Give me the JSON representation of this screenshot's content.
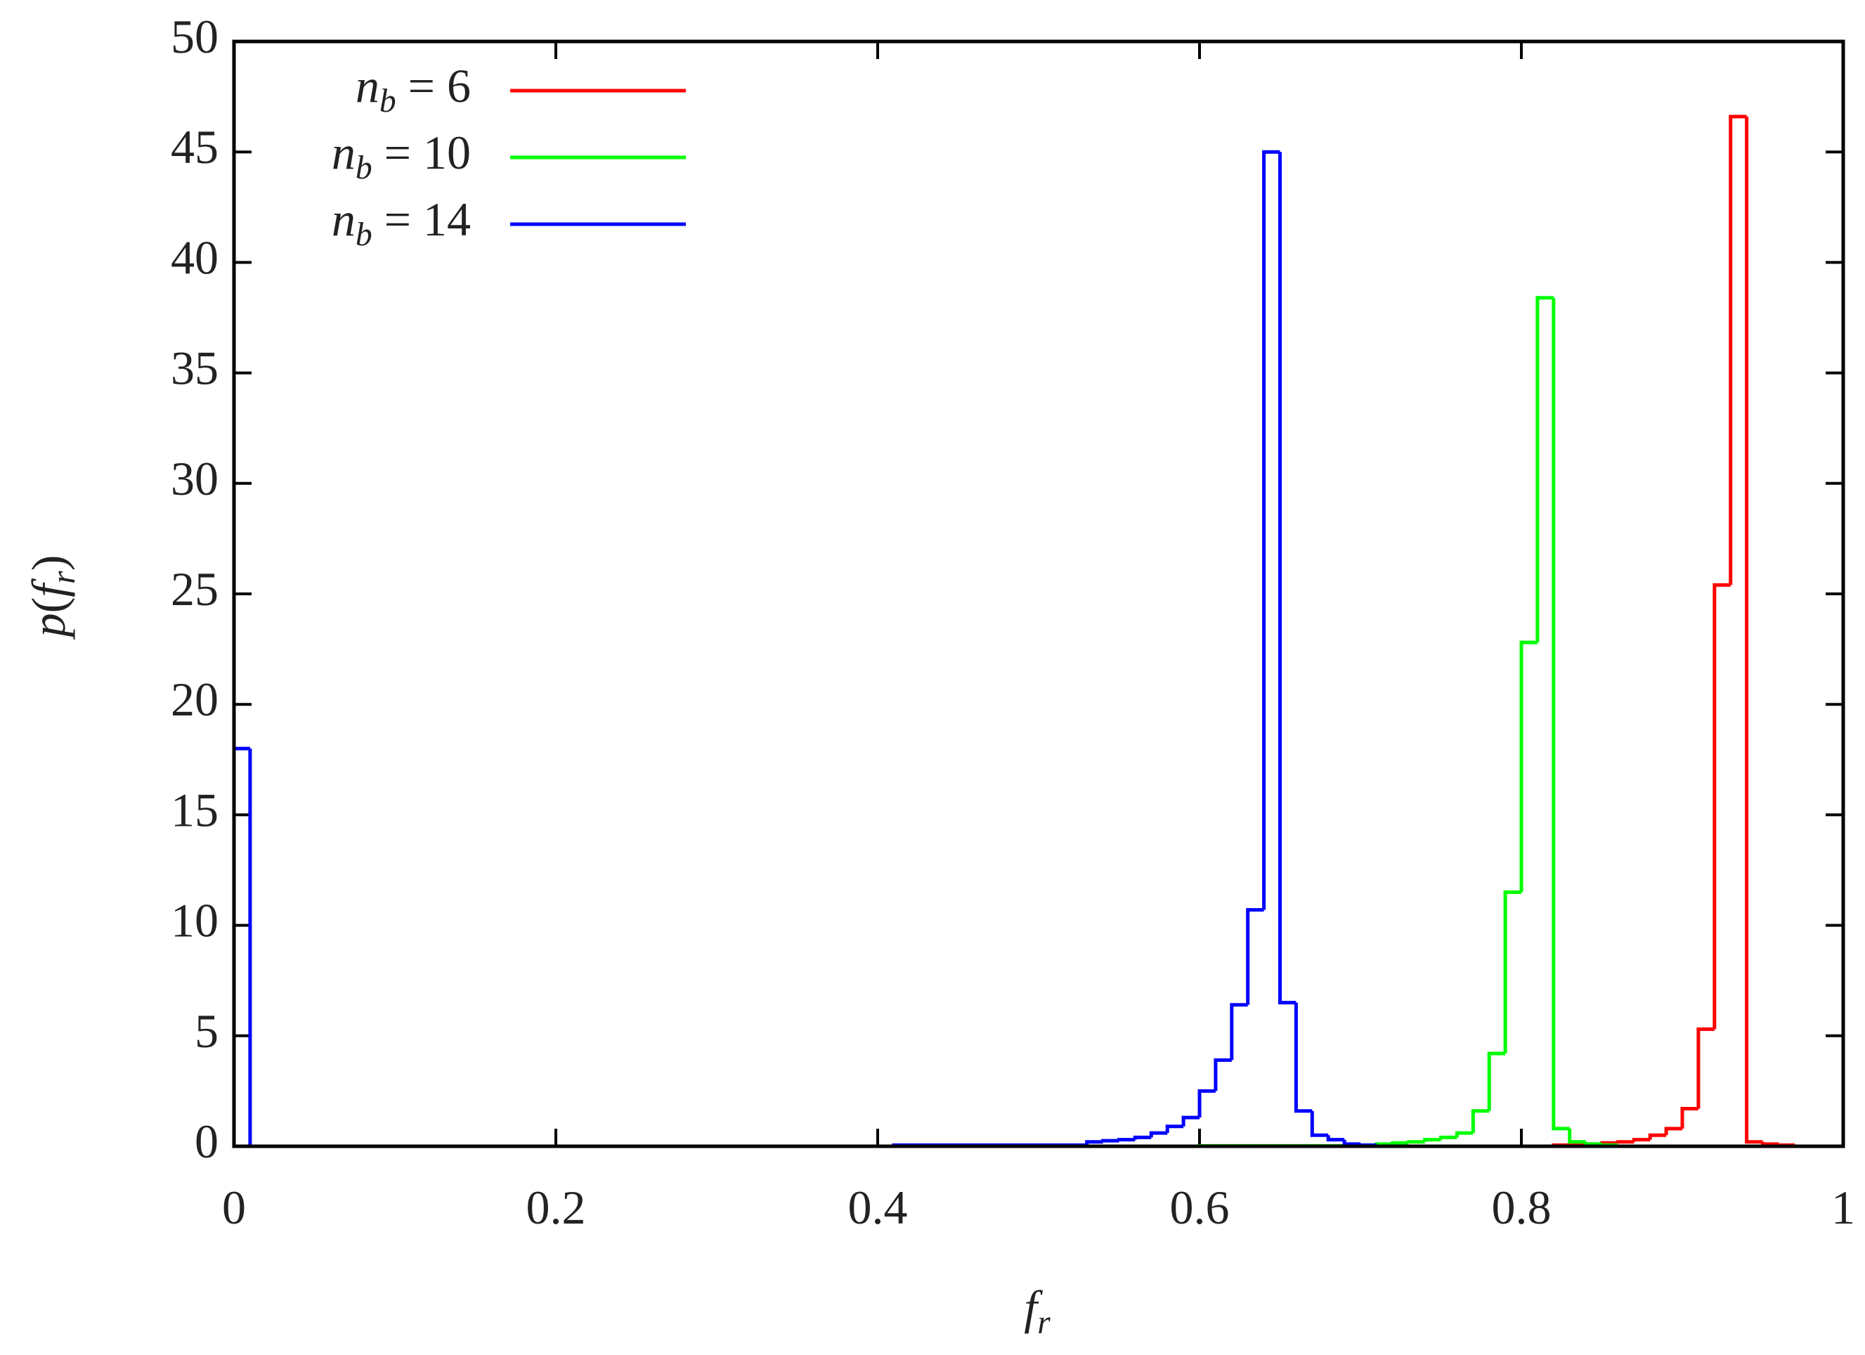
{
  "chart_data": {
    "type": "histogram",
    "x_label": "f_r",
    "y_label": "p(f_r)",
    "bins": [
      0,
      0.01,
      0.02,
      0.03,
      0.04,
      0.05,
      0.06,
      0.07,
      0.08,
      0.09,
      0.1,
      0.11,
      0.12,
      0.13,
      0.14,
      0.15,
      0.16,
      0.17,
      0.18,
      0.19,
      0.2,
      0.21,
      0.22,
      0.23,
      0.24,
      0.25,
      0.26,
      0.27,
      0.28,
      0.29,
      0.3,
      0.31,
      0.32,
      0.33,
      0.34,
      0.35,
      0.36,
      0.37,
      0.38,
      0.39,
      0.4,
      0.41,
      0.42,
      0.43,
      0.44,
      0.45,
      0.46,
      0.47,
      0.48,
      0.49,
      0.5,
      0.51,
      0.52,
      0.53,
      0.54,
      0.55,
      0.56,
      0.57,
      0.58,
      0.59,
      0.6,
      0.61,
      0.62,
      0.63,
      0.64,
      0.65,
      0.66,
      0.67,
      0.68,
      0.69,
      0.7,
      0.71,
      0.72,
      0.73,
      0.74,
      0.75,
      0.76,
      0.77,
      0.78,
      0.79,
      0.8,
      0.81,
      0.82,
      0.83,
      0.84,
      0.85,
      0.86,
      0.87,
      0.88,
      0.89,
      0.9,
      0.91,
      0.92,
      0.93,
      0.94,
      0.95,
      0.96,
      0.97,
      0.98,
      0.99,
      1
    ],
    "series": [
      {
        "name": "n_b = 6",
        "color": "#ff0000",
        "values": [
          0,
          0,
          0,
          0,
          0,
          0,
          0,
          0,
          0,
          0,
          0,
          0,
          0,
          0,
          0,
          0,
          0,
          0,
          0,
          0,
          0,
          0,
          0,
          0,
          0,
          0,
          0,
          0,
          0,
          0,
          0,
          0,
          0,
          0,
          0,
          0,
          0,
          0,
          0,
          0,
          0,
          0,
          0,
          0,
          0,
          0,
          0,
          0,
          0,
          0,
          0,
          0,
          0,
          0,
          0,
          0,
          0,
          0,
          0,
          0,
          0,
          0,
          0,
          0,
          0,
          0,
          0,
          0,
          0,
          0,
          0,
          0,
          0,
          0,
          0,
          0,
          0,
          0,
          0,
          0,
          0,
          0,
          0.05,
          0.05,
          0.1,
          0.15,
          0.2,
          0.3,
          0.5,
          0.8,
          1.7,
          5.3,
          25.4,
          46.6,
          0.2,
          0.1,
          0.05,
          0,
          0,
          0
        ]
      },
      {
        "name": "n_b = 10",
        "color": "#00ff00",
        "values": [
          0,
          0,
          0,
          0,
          0,
          0,
          0,
          0,
          0,
          0,
          0,
          0,
          0,
          0,
          0,
          0,
          0,
          0,
          0,
          0,
          0,
          0,
          0,
          0,
          0,
          0,
          0,
          0,
          0,
          0,
          0,
          0,
          0,
          0,
          0,
          0,
          0,
          0,
          0,
          0,
          0,
          0,
          0,
          0,
          0,
          0,
          0,
          0,
          0,
          0,
          0,
          0,
          0,
          0,
          0,
          0,
          0,
          0,
          0,
          0,
          0.02,
          0.02,
          0.02,
          0.02,
          0.02,
          0.02,
          0.02,
          0.02,
          0.02,
          0.02,
          0.05,
          0.1,
          0.15,
          0.2,
          0.3,
          0.4,
          0.6,
          1.6,
          4.2,
          11.5,
          22.8,
          38.4,
          0.8,
          0.2,
          0.1,
          0.05,
          0,
          0,
          0,
          0,
          0,
          0,
          0,
          0,
          0,
          0,
          0,
          0,
          0,
          0
        ]
      },
      {
        "name": "n_b = 14",
        "color": "#0000ff",
        "values": [
          18,
          0,
          0,
          0,
          0,
          0,
          0,
          0,
          0,
          0,
          0,
          0,
          0,
          0,
          0,
          0,
          0,
          0,
          0,
          0,
          0,
          0,
          0,
          0,
          0,
          0,
          0,
          0,
          0,
          0,
          0,
          0,
          0,
          0,
          0,
          0,
          0,
          0,
          0,
          0,
          0,
          0.05,
          0.05,
          0.05,
          0.05,
          0.05,
          0.05,
          0.05,
          0.05,
          0.05,
          0.05,
          0.05,
          0.05,
          0.2,
          0.25,
          0.3,
          0.4,
          0.6,
          0.9,
          1.3,
          2.5,
          3.9,
          6.4,
          10.7,
          45,
          6.5,
          1.6,
          0.5,
          0.3,
          0.1,
          0.05,
          0,
          0,
          0,
          0,
          0,
          0,
          0,
          0,
          0,
          0,
          0,
          0,
          0,
          0,
          0,
          0,
          0,
          0,
          0,
          0,
          0,
          0,
          0,
          0,
          0,
          0,
          0,
          0,
          0
        ]
      }
    ],
    "xlim": [
      0,
      1
    ],
    "ylim": [
      0,
      50
    ],
    "xticks": [
      0,
      0.2,
      0.4,
      0.6,
      0.8,
      1
    ],
    "yticks": [
      0,
      5,
      10,
      15,
      20,
      25,
      30,
      35,
      40,
      45,
      50
    ],
    "legend": "upper left"
  }
}
